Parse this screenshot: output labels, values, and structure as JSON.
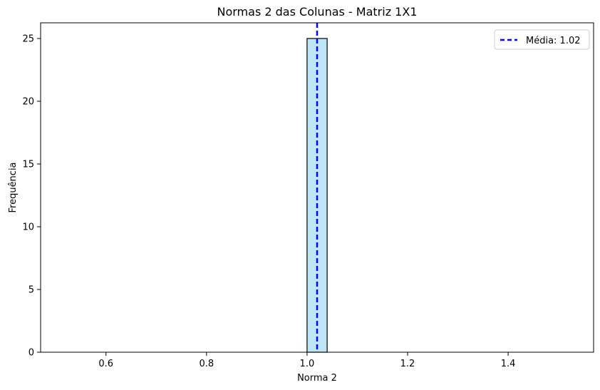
{
  "chart_data": {
    "type": "bar",
    "title": "Normas 2 das Colunas - Matriz 1X1",
    "xlabel": "Norma 2",
    "ylabel": "Frequência",
    "xlim": [
      0.47,
      1.57
    ],
    "ylim": [
      0,
      26.25
    ],
    "xticks": [
      0.6,
      0.8,
      1.0,
      1.2,
      1.4
    ],
    "xtick_labels": [
      "0.6",
      "0.8",
      "1.0",
      "1.2",
      "1.4"
    ],
    "yticks": [
      0,
      5,
      10,
      15,
      20,
      25
    ],
    "ytick_labels": [
      "0",
      "5",
      "10",
      "15",
      "20",
      "25"
    ],
    "bins": [
      {
        "x0": 1.0,
        "x1": 1.04,
        "count": 25
      }
    ],
    "baseline_range": [
      0.52,
      1.52
    ],
    "mean_line": {
      "value": 1.02,
      "label": "Média: 1.02",
      "color": "#0000ff",
      "style": "dashed"
    },
    "bar_fill": "#bfe6f7",
    "bar_edge": "#000000",
    "grid": false,
    "legend": {
      "position": "top-right",
      "entries": [
        "Média: 1.02"
      ]
    }
  }
}
